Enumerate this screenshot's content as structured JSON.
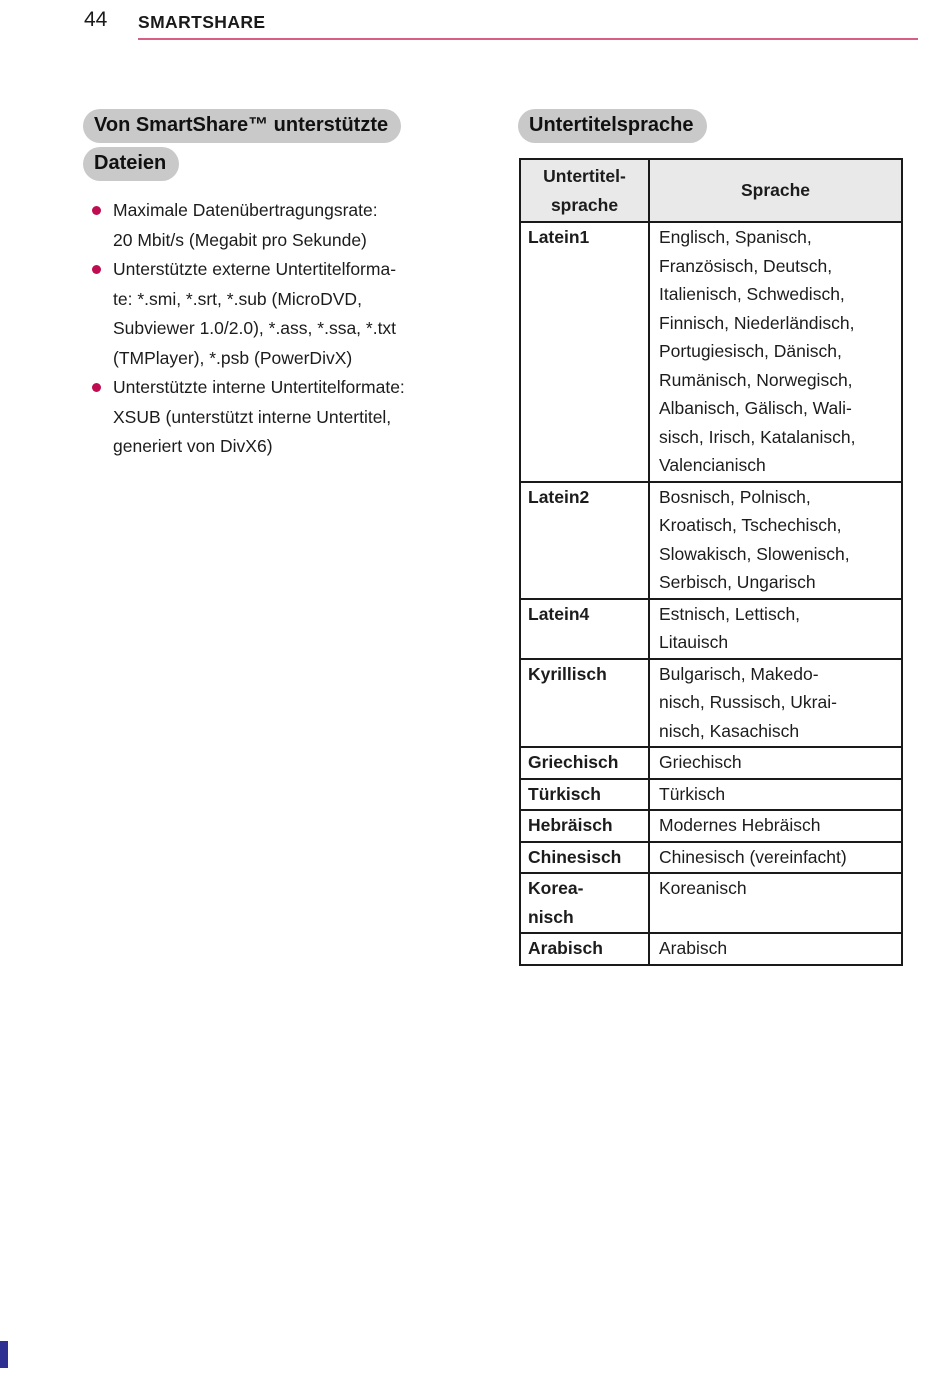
{
  "page": {
    "number": "44",
    "section_title": "SMARTSHARE"
  },
  "left_column": {
    "heading": {
      "line1": "Von SmartShare™ unterstützte",
      "line2": "Dateien"
    },
    "bullets": [
      "Maximale Datenübertragungsrate:\n20 Mbit/s (Megabit pro Sekunde)",
      "Unterstützte externe Untertitelforma-\nte: *.smi, *.srt, *.sub (MicroDVD,\nSubviewer 1.0/2.0), *.ass, *.ssa, *.txt\n(TMPlayer), *.psb (PowerDivX)",
      "Unterstützte interne Untertitelformate:\nXSUB (unterstützt interne Untertitel,\ngeneriert von DivX6)"
    ]
  },
  "right_column": {
    "heading": "Untertitelsprache",
    "table": {
      "col1_header": "Untertitel-\nsprache",
      "col2_header": "Sprache",
      "rows": [
        {
          "code": "Latein1",
          "languages": "Englisch, Spanisch,\nFranzösisch, Deutsch,\nItalienisch, Schwedisch,\nFinnisch, Niederländisch,\nPortugiesisch, Dänisch,\nRumänisch, Norwegisch,\nAlbanisch, Gälisch, Wali-\nsisch, Irisch, Katalanisch,\nValencianisch"
        },
        {
          "code": "Latein2",
          "languages": "Bosnisch, Polnisch,\nKroatisch, Tschechisch,\nSlowakisch, Slowenisch,\nSerbisch, Ungarisch"
        },
        {
          "code": "Latein4",
          "languages": "Estnisch, Lettisch,\nLitauisch"
        },
        {
          "code": "Kyrillisch",
          "languages": "Bulgarisch, Makedo-\nnisch, Russisch, Ukrai-\nnisch, Kasachisch"
        },
        {
          "code": "Griechisch",
          "languages": "Griechisch"
        },
        {
          "code": "Türkisch",
          "languages": "Türkisch"
        },
        {
          "code": "Hebräisch",
          "languages": "Modernes Hebräisch"
        },
        {
          "code": "Chinesisch",
          "languages": "Chinesisch (vereinfacht)"
        },
        {
          "code": "Korea-\nnisch",
          "languages": "Koreanisch"
        },
        {
          "code": "Arabisch",
          "languages": "Arabisch"
        }
      ]
    }
  },
  "colors": {
    "accent_rule_pink": "#d65f85",
    "bullet_crimson": "#c00c50",
    "pill_gray": "#c9c9c9",
    "table_header_gray": "#e9e9e9",
    "border_black": "#1a1a1a",
    "edge_tab_blue": "#2e3192"
  }
}
